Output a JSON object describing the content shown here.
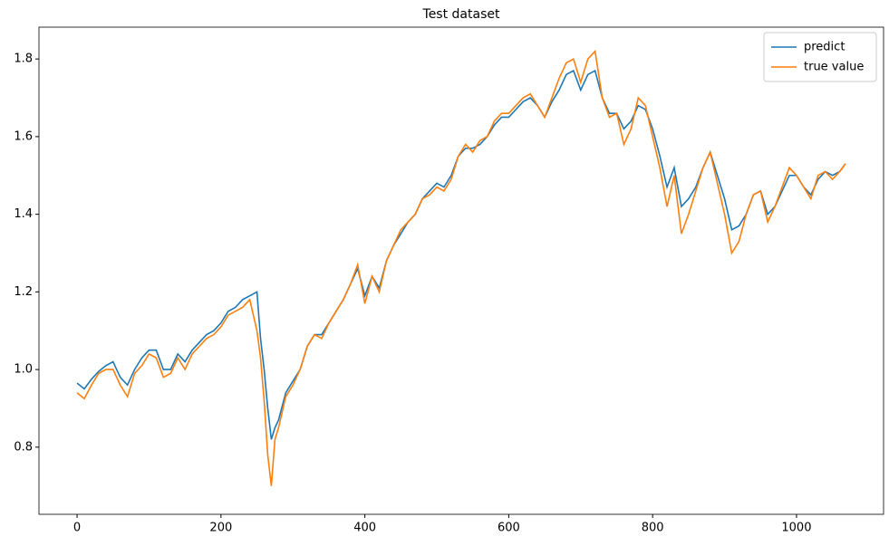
{
  "chart_data": {
    "type": "line",
    "title": "Test dataset",
    "x": [
      0,
      10,
      20,
      30,
      40,
      50,
      60,
      70,
      80,
      90,
      100,
      110,
      120,
      130,
      140,
      150,
      160,
      170,
      180,
      190,
      200,
      210,
      220,
      230,
      240,
      250,
      255,
      260,
      265,
      270,
      275,
      280,
      290,
      300,
      310,
      320,
      330,
      340,
      350,
      360,
      370,
      380,
      390,
      400,
      410,
      420,
      430,
      440,
      450,
      460,
      470,
      480,
      490,
      500,
      510,
      520,
      530,
      540,
      550,
      560,
      570,
      580,
      590,
      600,
      610,
      620,
      630,
      640,
      650,
      660,
      670,
      680,
      690,
      700,
      710,
      720,
      730,
      740,
      750,
      760,
      770,
      780,
      790,
      800,
      810,
      820,
      830,
      840,
      850,
      860,
      870,
      880,
      890,
      900,
      910,
      920,
      930,
      940,
      950,
      960,
      970,
      980,
      990,
      1000,
      1010,
      1020,
      1030,
      1040,
      1050,
      1060,
      1068
    ],
    "series": [
      {
        "name": "predict",
        "color": "#1f77b4",
        "values": [
          0.965,
          0.95,
          0.975,
          0.995,
          1.01,
          1.02,
          0.98,
          0.96,
          1.0,
          1.03,
          1.05,
          1.05,
          1.0,
          1.0,
          1.04,
          1.02,
          1.05,
          1.07,
          1.09,
          1.1,
          1.12,
          1.15,
          1.16,
          1.18,
          1.19,
          1.2,
          1.08,
          1.0,
          0.9,
          0.82,
          0.85,
          0.87,
          0.94,
          0.97,
          1.0,
          1.06,
          1.09,
          1.09,
          1.12,
          1.15,
          1.18,
          1.22,
          1.26,
          1.19,
          1.24,
          1.21,
          1.28,
          1.32,
          1.35,
          1.38,
          1.4,
          1.44,
          1.46,
          1.48,
          1.47,
          1.5,
          1.55,
          1.57,
          1.57,
          1.58,
          1.6,
          1.63,
          1.65,
          1.65,
          1.67,
          1.69,
          1.7,
          1.68,
          1.65,
          1.69,
          1.72,
          1.76,
          1.77,
          1.72,
          1.76,
          1.77,
          1.7,
          1.66,
          1.66,
          1.62,
          1.64,
          1.68,
          1.67,
          1.62,
          1.55,
          1.47,
          1.52,
          1.42,
          1.44,
          1.47,
          1.52,
          1.56,
          1.5,
          1.44,
          1.36,
          1.37,
          1.4,
          1.45,
          1.46,
          1.4,
          1.42,
          1.46,
          1.5,
          1.5,
          1.47,
          1.45,
          1.49,
          1.51,
          1.5,
          1.51,
          1.53
        ]
      },
      {
        "name": "true value",
        "color": "#ff7f0e",
        "values": [
          0.94,
          0.925,
          0.96,
          0.99,
          1.0,
          1.0,
          0.96,
          0.93,
          0.99,
          1.01,
          1.04,
          1.03,
          0.98,
          0.99,
          1.03,
          1.0,
          1.04,
          1.06,
          1.08,
          1.09,
          1.11,
          1.14,
          1.15,
          1.16,
          1.18,
          1.1,
          1.03,
          0.92,
          0.78,
          0.7,
          0.82,
          0.85,
          0.93,
          0.96,
          1.0,
          1.06,
          1.09,
          1.08,
          1.12,
          1.15,
          1.18,
          1.22,
          1.27,
          1.17,
          1.24,
          1.2,
          1.28,
          1.32,
          1.36,
          1.38,
          1.4,
          1.44,
          1.45,
          1.47,
          1.46,
          1.49,
          1.55,
          1.58,
          1.56,
          1.59,
          1.6,
          1.64,
          1.66,
          1.66,
          1.68,
          1.7,
          1.71,
          1.68,
          1.65,
          1.7,
          1.75,
          1.79,
          1.8,
          1.74,
          1.8,
          1.82,
          1.7,
          1.65,
          1.66,
          1.58,
          1.62,
          1.7,
          1.68,
          1.6,
          1.52,
          1.42,
          1.5,
          1.35,
          1.4,
          1.46,
          1.52,
          1.56,
          1.48,
          1.4,
          1.3,
          1.33,
          1.4,
          1.45,
          1.46,
          1.38,
          1.42,
          1.47,
          1.52,
          1.5,
          1.47,
          1.44,
          1.5,
          1.51,
          1.49,
          1.51,
          1.53
        ]
      }
    ],
    "xlim": [
      -53,
      1121
    ],
    "xticks": [
      0,
      200,
      400,
      600,
      800,
      1000
    ],
    "ylim": [
      0.627,
      1.882
    ],
    "yticks": [
      0.8,
      {
        "value": 1,
        "label": "1.0"
      },
      1.2,
      1.4,
      1.6,
      1.8
    ],
    "legend": "upper right"
  }
}
